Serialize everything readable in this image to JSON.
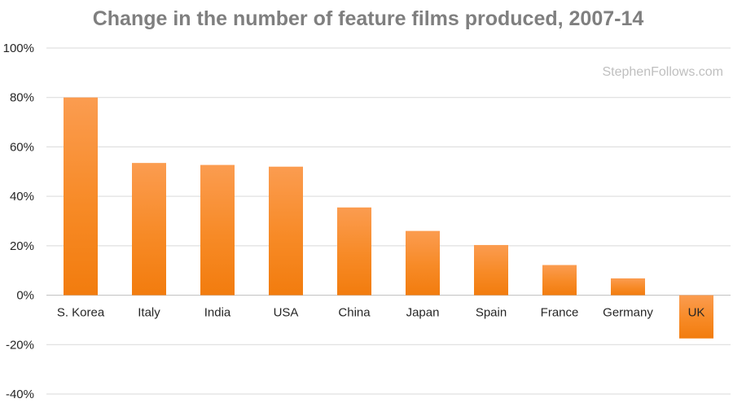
{
  "chart_data": {
    "type": "bar",
    "title": "Change in the number of feature films produced, 2007-14",
    "xlabel": "",
    "ylabel": "",
    "categories": [
      "S. Korea",
      "Italy",
      "India",
      "USA",
      "China",
      "Japan",
      "Spain",
      "France",
      "Germany",
      "UK"
    ],
    "values": [
      80,
      53.5,
      52.7,
      52,
      35.5,
      26,
      20.3,
      12.2,
      6.8,
      -17.5
    ],
    "value_unit": "%",
    "ylim": [
      -40,
      100
    ],
    "yticks": [
      -40,
      -20,
      0,
      20,
      40,
      60,
      80,
      100
    ],
    "ytick_labels": [
      "-40%",
      "-20%",
      "0%",
      "20%",
      "40%",
      "60%",
      "80%",
      "100%"
    ],
    "grid": true,
    "legend": "none",
    "annotations": [
      "StephenFollows.com"
    ]
  },
  "colors": {
    "bar_top": "#fb9c50",
    "bar_bottom": "#f27c0e",
    "title": "#7f7f7f",
    "watermark": "#bfbfbf",
    "gridline": "#d9d9d9",
    "tick_text": "#262626"
  }
}
